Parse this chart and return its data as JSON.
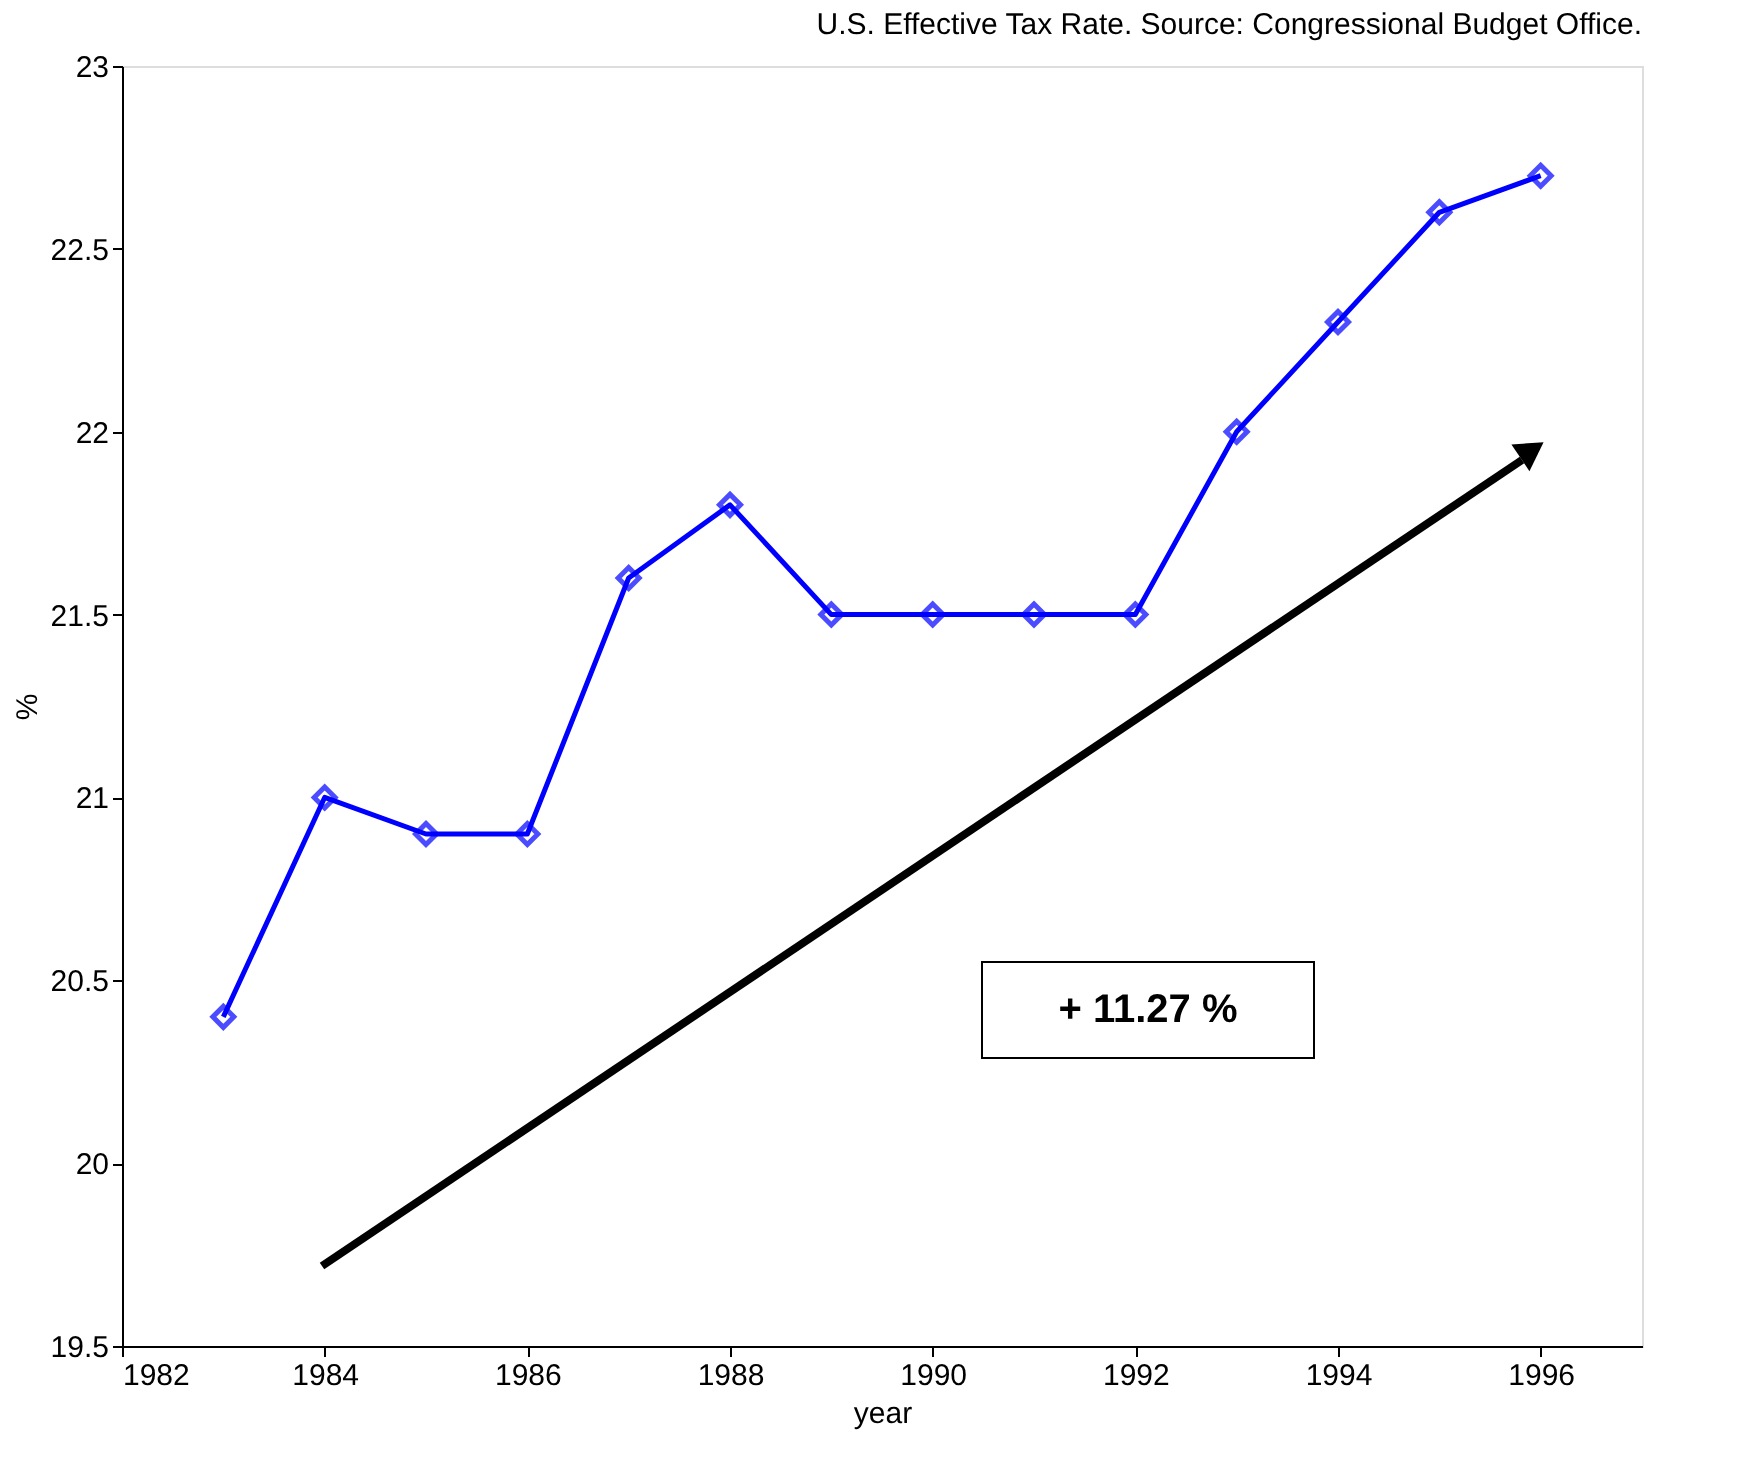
{
  "chart_data": {
    "type": "line",
    "title": "U.S. Effective Tax Rate. Source: Congressional Budget Office.",
    "xlabel": "year",
    "ylabel": "%",
    "x": [
      1983,
      1984,
      1985,
      1986,
      1987,
      1988,
      1989,
      1990,
      1991,
      1992,
      1993,
      1994,
      1995,
      1996
    ],
    "series": [
      {
        "color": "#0000ff",
        "values": [
          20.4,
          21.0,
          20.9,
          20.9,
          21.6,
          21.8,
          21.5,
          21.5,
          21.5,
          21.5,
          22.0,
          22.3,
          22.6,
          22.7
        ]
      }
    ],
    "xlim": [
      1982,
      1997
    ],
    "xticks": [
      1982,
      1984,
      1986,
      1988,
      1990,
      1992,
      1994,
      1996
    ],
    "ylim": [
      19.5,
      23
    ],
    "yticks": [
      19.5,
      20,
      20.5,
      21,
      21.5,
      22,
      22.5,
      23
    ],
    "annotations": [
      "+ 11.27 %"
    ],
    "grid": false,
    "marker": "diamond",
    "line_style": "solid"
  }
}
